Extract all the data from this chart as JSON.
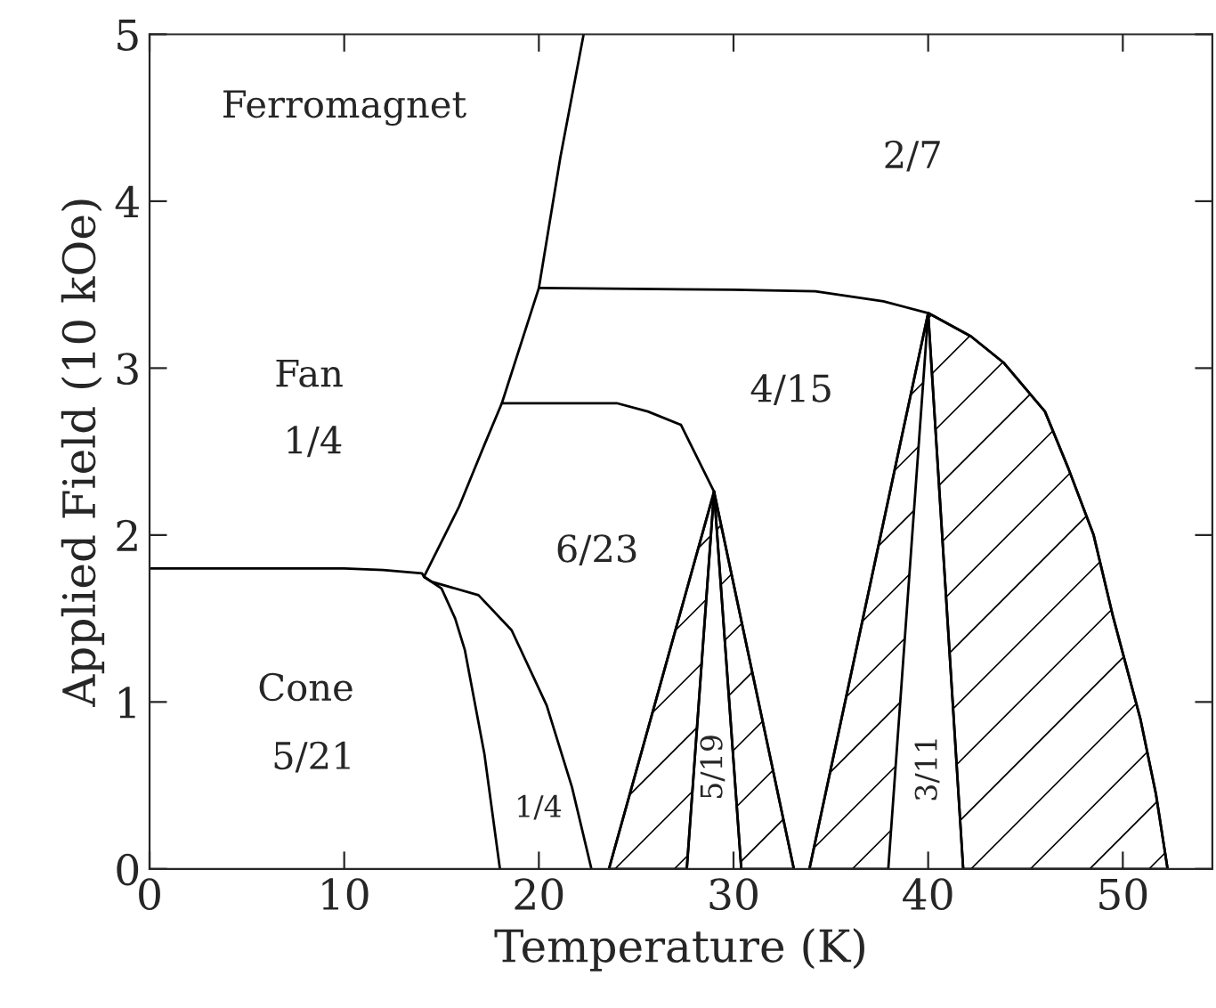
{
  "chart_data": {
    "type": "line",
    "xlabel": "Temperature (K)",
    "ylabel": "Applied Field (10 kOe)",
    "xlim": [
      0,
      54.6
    ],
    "ylim": [
      0,
      5
    ],
    "xticks": [
      0,
      10,
      20,
      30,
      40,
      50
    ],
    "yticks": [
      0,
      1,
      2,
      3,
      4,
      5
    ],
    "series": [
      {
        "type": "area",
        "color": "#000000",
        "x": [
          23.6,
          29,
          27.6
        ],
        "values": [
          0,
          2.26,
          0
        ]
      },
      {
        "type": "area",
        "color": "#000000",
        "x": [
          29,
          33.1,
          30.4
        ],
        "values": [
          2.26,
          0,
          0
        ]
      },
      {
        "type": "area",
        "color": "#000000",
        "x": [
          33.9,
          40,
          37.95
        ],
        "values": [
          0,
          3.33,
          0
        ]
      },
      {
        "type": "area",
        "color": "#000000",
        "x": [
          40,
          42.2,
          43.9,
          46,
          47.2,
          48.5,
          49.5,
          50.9,
          51.7,
          52.3,
          41.8
        ],
        "values": [
          3.33,
          3.19,
          3.03,
          2.74,
          2.4,
          2.0,
          1.51,
          0.9,
          0.45,
          0,
          0
        ]
      },
      {
        "color": "#000000",
        "x": [
          0,
          10,
          12,
          14,
          14.1,
          15,
          15.7,
          16.2,
          17.2,
          18
        ],
        "values": [
          1.8,
          1.8,
          1.79,
          1.77,
          1.75,
          1.68,
          1.5,
          1.31,
          0.69,
          0
        ]
      },
      {
        "color": "#000000",
        "x": [
          14.1,
          15.9,
          17.2,
          18.1,
          20,
          21.1,
          22.3
        ],
        "values": [
          1.75,
          2.17,
          2.54,
          2.79,
          3.48,
          4.26,
          5.0
        ]
      },
      {
        "color": "#000000",
        "x": [
          14.1,
          14.5,
          16.9,
          18.6,
          20.4,
          21.7,
          22.7
        ],
        "values": [
          1.75,
          1.72,
          1.64,
          1.43,
          0.98,
          0.49,
          0
        ]
      },
      {
        "color": "#000000",
        "x": [
          18.1,
          24,
          25.6,
          27.3,
          29
        ],
        "values": [
          2.79,
          2.79,
          2.74,
          2.66,
          2.26
        ]
      },
      {
        "color": "#000000",
        "x": [
          20,
          30,
          34.2,
          37.7,
          40,
          42.2,
          43.9,
          46,
          47.2,
          48.5,
          49.5,
          50.9,
          51.7,
          52.3
        ],
        "values": [
          3.48,
          3.47,
          3.46,
          3.4,
          3.33,
          3.19,
          3.03,
          2.74,
          2.4,
          2.0,
          1.51,
          0.9,
          0.45,
          0
        ]
      },
      {
        "color": "#000000",
        "x": [
          23.6,
          29,
          33.1
        ],
        "values": [
          0,
          2.26,
          0
        ]
      },
      {
        "color": "#000000",
        "x": [
          27.6,
          29,
          30.4
        ],
        "values": [
          0,
          2.26,
          0
        ]
      },
      {
        "color": "#000000",
        "x": [
          33.9,
          40,
          41.8
        ],
        "values": [
          0,
          3.33,
          0
        ]
      }
    ],
    "annotations": [
      "Ferromagnet",
      "2/7",
      "Fan",
      "1/4",
      "4/15",
      "6/23",
      "Cone",
      "5/21",
      "1/4",
      "5/19",
      "3/11"
    ]
  }
}
